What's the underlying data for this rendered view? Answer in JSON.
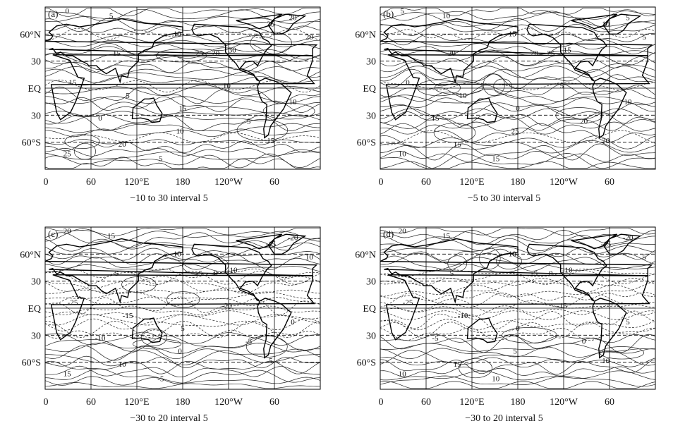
{
  "chart_data": [
    {
      "type": "contour",
      "panel_label": "(a)",
      "caption": "−10 to 30 interval 5",
      "level_range": [
        -10,
        30
      ],
      "interval": 5,
      "x_ticks": [
        "0",
        "60",
        "120°E",
        "180",
        "120°W",
        "60"
      ],
      "y_ticks": [
        "60°N",
        "30",
        "EQ",
        "30",
        "60°S"
      ],
      "contour_labels": [
        "0",
        "5",
        "10",
        "15",
        "20",
        "25",
        "30",
        "25",
        "20",
        "15",
        "10",
        "5",
        "0",
        "5",
        "10",
        "15",
        "20",
        "25",
        "20",
        "15",
        "10",
        "5"
      ]
    },
    {
      "type": "contour",
      "panel_label": "(b)",
      "caption": "−5 to 30 interval 5",
      "level_range": [
        -5,
        30
      ],
      "interval": 5,
      "x_ticks": [
        "0",
        "60",
        "120°E",
        "180",
        "120°W",
        "60"
      ],
      "y_ticks": [
        "60°N",
        "30",
        "EQ",
        "30",
        "60°S"
      ],
      "contour_labels": [
        "5",
        "10",
        "15",
        "20",
        "25",
        "20",
        "15",
        "10",
        "5",
        "0",
        "5",
        "10",
        "15",
        "20",
        "25",
        "20",
        "15",
        "10",
        "5",
        "0",
        "10",
        "15"
      ]
    },
    {
      "type": "contour",
      "panel_label": "(c)",
      "caption": "−30 to 20 interval 5",
      "level_range": [
        -30,
        20
      ],
      "interval": 5,
      "x_ticks": [
        "0",
        "60",
        "120°E",
        "180",
        "120°W",
        "60"
      ],
      "y_ticks": [
        "60°N",
        "30",
        "EQ",
        "30",
        "60°S"
      ],
      "contour_labels": [
        "20",
        "15",
        "10",
        "5",
        "0",
        "-5",
        "-10",
        "-15",
        "-20",
        "-25",
        "-20",
        "-15",
        "-10",
        "-5",
        "0",
        "5",
        "10",
        "15",
        "10",
        "5",
        "0",
        "-5"
      ]
    },
    {
      "type": "contour",
      "panel_label": "(d)",
      "caption": "−30 to 20 interval 5",
      "level_range": [
        -30,
        20
      ],
      "interval": 5,
      "x_ticks": [
        "0",
        "60",
        "120°E",
        "180",
        "120°W",
        "60"
      ],
      "y_ticks": [
        "60°N",
        "30",
        "EQ",
        "30",
        "60°S"
      ],
      "contour_labels": [
        "20",
        "15",
        "10",
        "5",
        "0",
        "-5",
        "-10",
        "-15",
        "-20",
        "-25",
        "-15",
        "-10",
        "-5",
        "0",
        "5",
        "10",
        "15",
        "10",
        "5",
        "0",
        "5",
        "10"
      ]
    }
  ]
}
